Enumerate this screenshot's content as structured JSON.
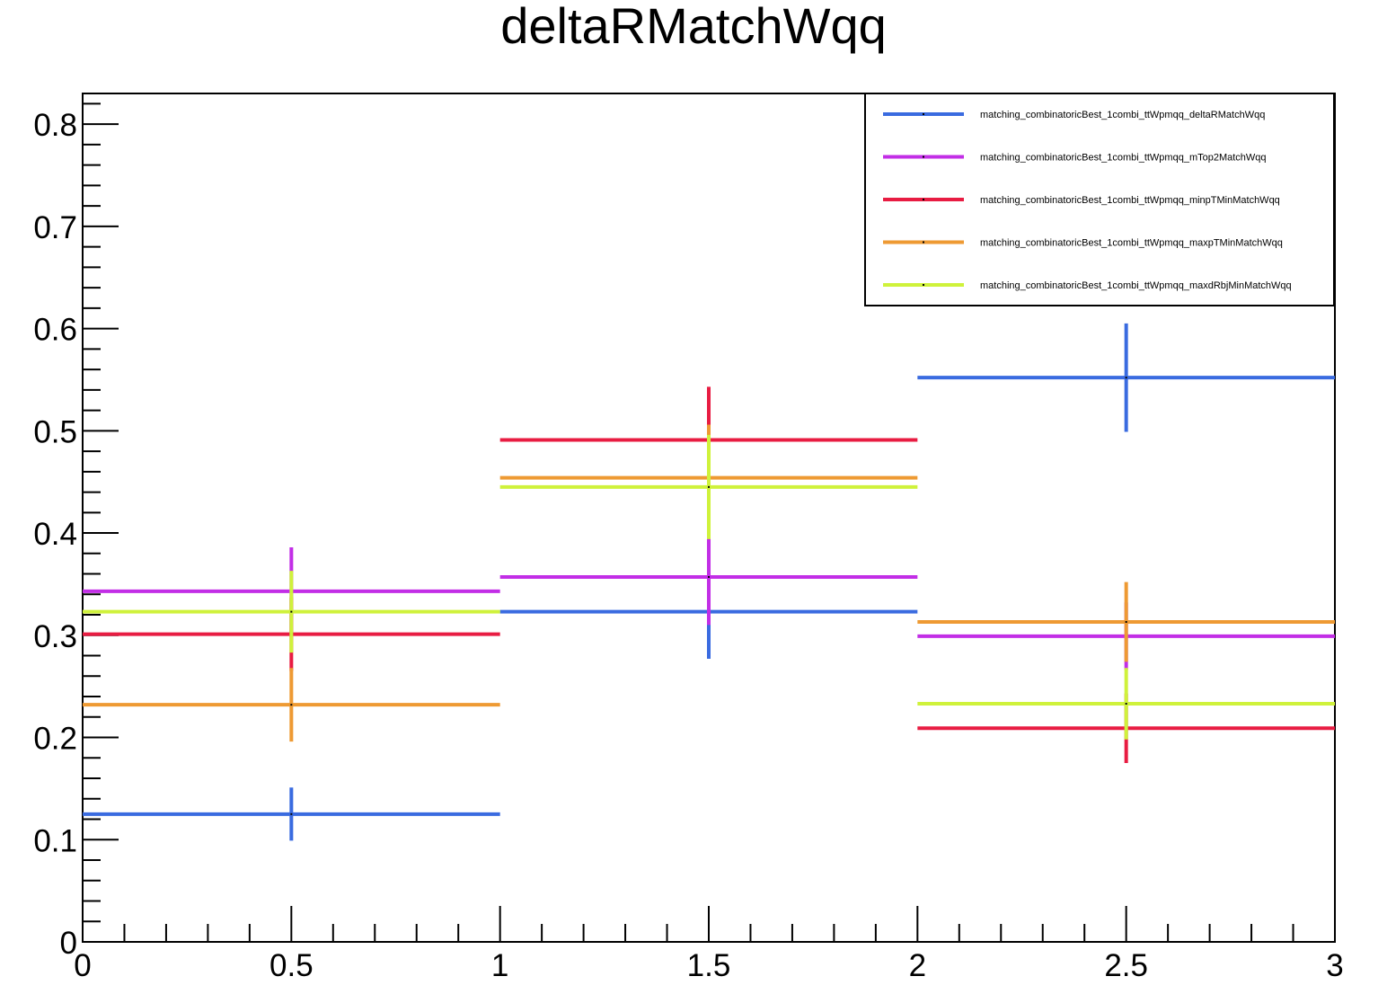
{
  "chart_data": {
    "type": "scatter",
    "title": "deltaRMatchWqq",
    "xlabel": "",
    "ylabel": "",
    "xlim": [
      0,
      3
    ],
    "ylim": [
      0,
      0.83
    ],
    "x_ticks": [
      "0",
      "0.5",
      "1",
      "1.5",
      "2",
      "2.5",
      "3"
    ],
    "y_ticks": [
      "0",
      "0.1",
      "0.2",
      "0.3",
      "0.4",
      "0.5",
      "0.6",
      "0.7",
      "0.8"
    ],
    "grid": false,
    "legend_position": "top-right",
    "bins": [
      [
        0,
        1
      ],
      [
        1,
        2
      ],
      [
        2,
        3
      ]
    ],
    "x": [
      0.5,
      1.5,
      2.5
    ],
    "series": [
      {
        "name": "matching_combinatoricBest_1combi_ttWpmqq_deltaRMatchWqq",
        "color": "#3a6be0",
        "values": [
          0.125,
          0.323,
          0.552
        ],
        "errors": [
          0.026,
          0.046,
          0.053
        ]
      },
      {
        "name": "matching_combinatoricBest_1combi_ttWpmqq_mTop2MatchWqq",
        "color": "#c22ee6",
        "values": [
          0.343,
          0.357,
          0.299
        ],
        "errors": [
          0.043,
          0.047,
          0.033
        ]
      },
      {
        "name": "matching_combinatoricBest_1combi_ttWpmqq_minpTMinMatchWqq",
        "color": "#e81c42",
        "values": [
          0.301,
          0.491,
          0.209
        ],
        "errors": [
          0.036,
          0.052,
          0.034
        ]
      },
      {
        "name": "matching_combinatoricBest_1combi_ttWpmqq_maxpTMinMatchWqq",
        "color": "#ee9a33",
        "values": [
          0.232,
          0.454,
          0.313
        ],
        "errors": [
          0.036,
          0.052,
          0.039
        ]
      },
      {
        "name": "matching_combinatoricBest_1combi_ttWpmqq_maxdRbjMinMatchWqq",
        "color": "#cff23b",
        "values": [
          0.323,
          0.445,
          0.233
        ],
        "errors": [
          0.04,
          0.051,
          0.035
        ]
      }
    ]
  }
}
